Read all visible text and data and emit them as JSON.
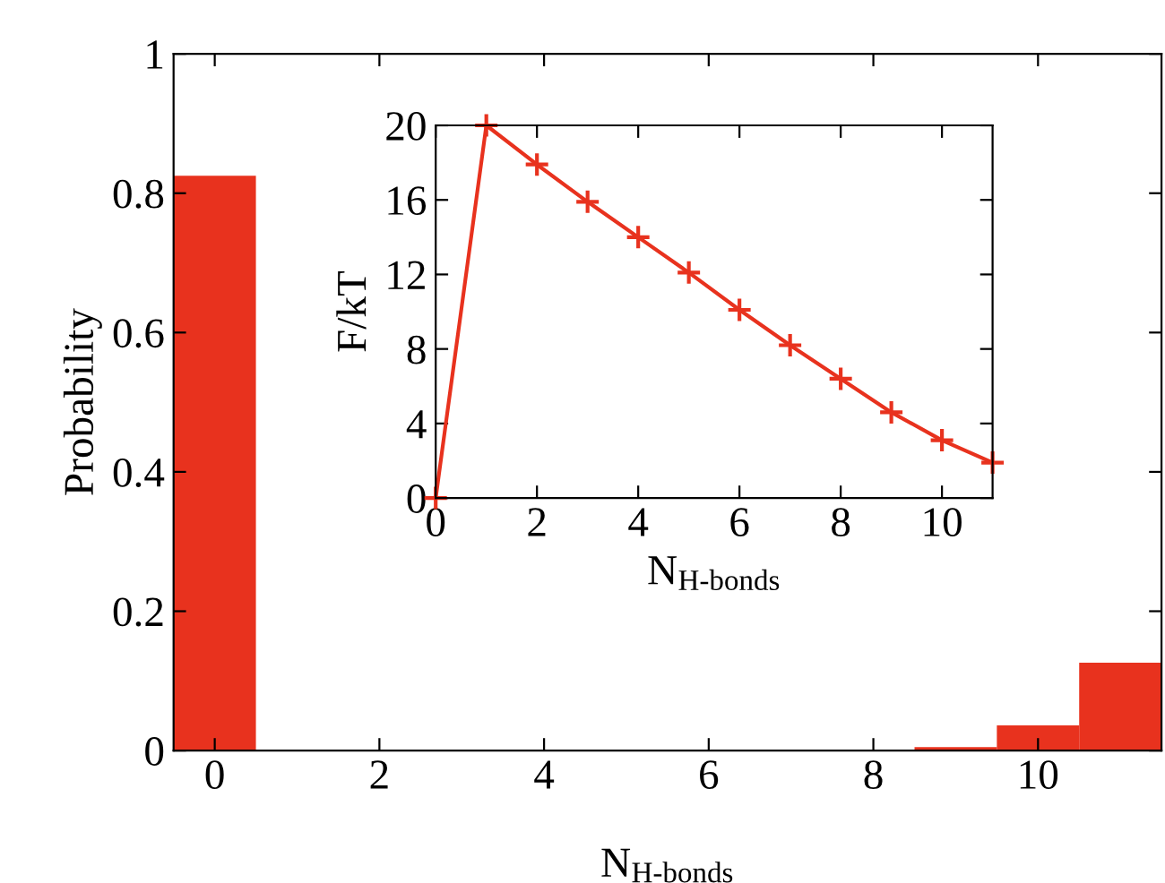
{
  "chart_data": [
    {
      "type": "histogram",
      "xlabel": "N$_{H-bonds}$",
      "ylabel": "Probability",
      "color": "#e8321e",
      "bins": [
        -0.5,
        0.5,
        1.5,
        2.5,
        3.5,
        4.5,
        5.5,
        6.5,
        7.5,
        8.5,
        9.5,
        10.5,
        11.5
      ],
      "values": [
        0.825,
        0,
        0,
        0,
        0,
        0,
        0,
        0,
        0,
        0.005,
        0.036,
        0.126
      ],
      "xlim": [
        -0.5,
        11.5
      ],
      "ylim": [
        0,
        1
      ],
      "xticks": [
        0,
        2,
        4,
        6,
        8,
        10
      ],
      "yticks": [
        0,
        0.2,
        0.4,
        0.6,
        0.8,
        1
      ],
      "grid": false
    },
    {
      "type": "line",
      "xlabel": "N$_{H-bonds}$",
      "ylabel": "F/kT",
      "marker": "cross",
      "line_style": "solid",
      "x": [
        0,
        1,
        2,
        3,
        4,
        5,
        6,
        7,
        8,
        9,
        10,
        11
      ],
      "series": [
        {
          "color": "#e8321e",
          "values": [
            0,
            20,
            17.9,
            15.9,
            14,
            12.1,
            10.1,
            8.2,
            6.4,
            4.6,
            3.1,
            1.9
          ]
        }
      ],
      "xlim": [
        0,
        11
      ],
      "ylim": [
        0,
        20
      ],
      "xticks": [
        0,
        2,
        4,
        6,
        8,
        10
      ],
      "yticks": [
        0,
        4,
        8,
        12,
        16,
        20
      ],
      "grid": false
    }
  ]
}
